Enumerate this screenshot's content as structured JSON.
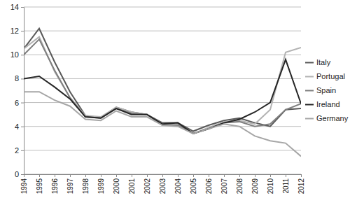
{
  "chart_data": {
    "type": "line",
    "categories": [
      "1994",
      "1995",
      "1996",
      "1997",
      "1998",
      "1999",
      "2000",
      "2001",
      "2002",
      "2003",
      "2004",
      "2005",
      "2006",
      "2007",
      "2008",
      "2009",
      "2010",
      "2011",
      "2012"
    ],
    "series": [
      {
        "name": "Italy",
        "color": "#595959",
        "values": [
          10.5,
          12.2,
          9.4,
          6.9,
          4.9,
          4.7,
          5.6,
          5.2,
          5.0,
          4.3,
          4.3,
          3.6,
          4.1,
          4.5,
          4.7,
          4.3,
          4.0,
          5.4,
          5.5
        ]
      },
      {
        "name": "Portugal",
        "color": "#b3b3b3",
        "values": [
          10.5,
          11.5,
          8.6,
          6.4,
          4.9,
          4.8,
          5.6,
          5.2,
          5.0,
          4.2,
          4.2,
          3.4,
          3.9,
          4.4,
          4.5,
          4.2,
          5.4,
          10.2,
          10.6
        ]
      },
      {
        "name": "Spain",
        "color": "#7f7f7f",
        "values": [
          10.0,
          11.3,
          8.7,
          6.4,
          4.8,
          4.7,
          5.5,
          5.1,
          5.0,
          4.1,
          4.1,
          3.4,
          3.8,
          4.3,
          4.4,
          4.0,
          4.2,
          5.4,
          5.9
        ]
      },
      {
        "name": "Ireland",
        "color": "#262626",
        "values": [
          8.0,
          8.2,
          7.3,
          6.3,
          4.8,
          4.7,
          5.5,
          5.0,
          5.0,
          4.2,
          4.3,
          3.4,
          3.8,
          4.3,
          4.6,
          5.2,
          6.0,
          9.6,
          5.9
        ]
      },
      {
        "name": "Germany",
        "color": "#a6a6a6",
        "values": [
          6.9,
          6.9,
          6.2,
          5.7,
          4.6,
          4.5,
          5.3,
          4.8,
          4.8,
          4.1,
          4.0,
          3.4,
          3.8,
          4.2,
          4.0,
          3.2,
          2.8,
          2.6,
          1.5
        ]
      }
    ],
    "ylim": [
      0,
      14
    ],
    "yticks": [
      0,
      2,
      4,
      6,
      8,
      10,
      12,
      14
    ],
    "grid": true,
    "legend": "right"
  }
}
